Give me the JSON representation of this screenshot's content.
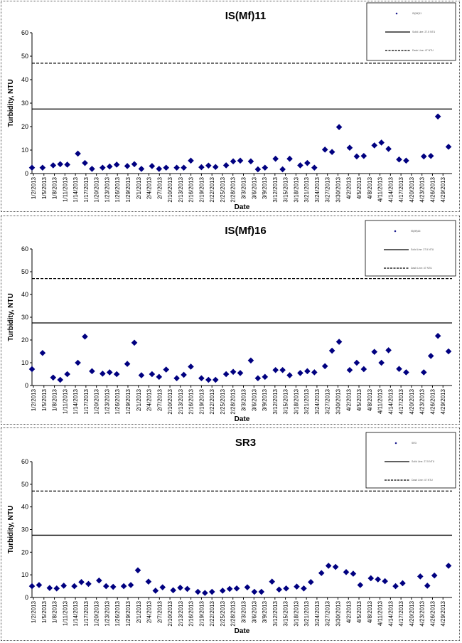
{
  "colors": {
    "marker": "#000080",
    "line": "#000000",
    "background": "#ffffff"
  },
  "chart_data": [
    {
      "type": "scatter",
      "title": "IS(Mf)11",
      "xlabel": "Date",
      "ylabel": "Turbidity, NTU",
      "ylim": [
        0,
        60
      ],
      "yticks": [
        0,
        10,
        20,
        30,
        40,
        50,
        60
      ],
      "xlim": [
        "2013-01-02",
        "2013-05-01"
      ],
      "xtick_labels": [
        "1/2/2013",
        "1/5/2013",
        "1/8/2013",
        "1/11/2013",
        "1/14/2013",
        "1/17/2013",
        "1/20/2013",
        "1/23/2013",
        "1/26/2013",
        "1/29/2013",
        "2/1/2013",
        "2/4/2013",
        "2/7/2013",
        "2/10/2013",
        "2/13/2013",
        "2/16/2013",
        "2/19/2013",
        "2/22/2013",
        "2/25/2013",
        "2/28/2013",
        "3/3/2013",
        "3/6/2013",
        "3/9/2013",
        "3/12/2013",
        "3/15/2013",
        "3/18/2013",
        "3/21/2013",
        "3/24/2013",
        "3/27/2013",
        "3/30/2013",
        "4/2/2013",
        "4/5/2013",
        "4/8/2013",
        "4/11/2013",
        "4/14/2013",
        "4/17/2013",
        "4/20/2013",
        "4/23/2013",
        "4/26/2013",
        "4/29/2013"
      ],
      "legend": {
        "position": "top-right",
        "entries": [
          "IS(Mf)11",
          "Solid Line: 27.5 NTU",
          "Dash Line: 47 NTU"
        ]
      },
      "reference_lines": [
        {
          "y": 27.5,
          "style": "solid"
        },
        {
          "y": 47,
          "style": "dashed"
        }
      ],
      "series": [
        {
          "points": [
            [
              "2013-01-02",
              2.5
            ],
            [
              "2013-01-05",
              2.5
            ],
            [
              "2013-01-08",
              3.5
            ],
            [
              "2013-01-10",
              4.0
            ],
            [
              "2013-01-12",
              3.8
            ],
            [
              "2013-01-15",
              8.5
            ],
            [
              "2013-01-17",
              4.5
            ],
            [
              "2013-01-19",
              2.0
            ],
            [
              "2013-01-22",
              2.5
            ],
            [
              "2013-01-24",
              3.0
            ],
            [
              "2013-01-26",
              3.8
            ],
            [
              "2013-01-29",
              3.2
            ],
            [
              "2013-01-31",
              4.0
            ],
            [
              "2013-02-02",
              2.0
            ],
            [
              "2013-02-05",
              3.2
            ],
            [
              "2013-02-07",
              2.0
            ],
            [
              "2013-02-09",
              2.5
            ],
            [
              "2013-02-12",
              2.5
            ],
            [
              "2013-02-14",
              2.5
            ],
            [
              "2013-02-16",
              5.5
            ],
            [
              "2013-02-19",
              2.7
            ],
            [
              "2013-02-21",
              3.4
            ],
            [
              "2013-02-23",
              2.8
            ],
            [
              "2013-02-26",
              3.5
            ],
            [
              "2013-02-28",
              5.2
            ],
            [
              "2013-03-02",
              5.5
            ],
            [
              "2013-03-05",
              5.2
            ],
            [
              "2013-03-07",
              1.8
            ],
            [
              "2013-03-09",
              2.5
            ],
            [
              "2013-03-12",
              6.3
            ],
            [
              "2013-03-14",
              1.8
            ],
            [
              "2013-03-16",
              6.3
            ],
            [
              "2013-03-19",
              3.5
            ],
            [
              "2013-03-21",
              4.5
            ],
            [
              "2013-03-23",
              2.5
            ],
            [
              "2013-03-26",
              10.2
            ],
            [
              "2013-03-28",
              9.2
            ],
            [
              "2013-03-30",
              19.8
            ],
            [
              "2013-04-02",
              11.0
            ],
            [
              "2013-04-04",
              7.3
            ],
            [
              "2013-04-06",
              7.5
            ],
            [
              "2013-04-09",
              12.0
            ],
            [
              "2013-04-11",
              13.2
            ],
            [
              "2013-04-13",
              10.5
            ],
            [
              "2013-04-16",
              6.0
            ],
            [
              "2013-04-18",
              5.5
            ],
            [
              "2013-04-23",
              7.3
            ],
            [
              "2013-04-25",
              7.5
            ],
            [
              "2013-04-27",
              24.3
            ],
            [
              "2013-04-30",
              11.4
            ]
          ]
        }
      ]
    },
    {
      "type": "scatter",
      "title": "IS(Mf)16",
      "xlabel": "Date",
      "ylabel": "Turbidity, NTU",
      "ylim": [
        0,
        60
      ],
      "yticks": [
        0,
        10,
        20,
        30,
        40,
        50,
        60
      ],
      "xlim": [
        "2013-01-02",
        "2013-05-01"
      ],
      "xtick_labels": [
        "1/2/2013",
        "1/5/2013",
        "1/8/2013",
        "1/11/2013",
        "1/14/2013",
        "1/17/2013",
        "1/20/2013",
        "1/23/2013",
        "1/26/2013",
        "1/29/2013",
        "2/1/2013",
        "2/4/2013",
        "2/7/2013",
        "2/10/2013",
        "2/13/2013",
        "2/16/2013",
        "2/19/2013",
        "2/22/2013",
        "2/25/2013",
        "2/28/2013",
        "3/3/2013",
        "3/6/2013",
        "3/9/2013",
        "3/12/2013",
        "3/15/2013",
        "3/18/2013",
        "3/21/2013",
        "3/24/2013",
        "3/27/2013",
        "3/30/2013",
        "4/2/2013",
        "4/5/2013",
        "4/8/2013",
        "4/11/2013",
        "4/14/2013",
        "4/17/2013",
        "4/20/2013",
        "4/23/2013",
        "4/26/2013",
        "4/29/2013"
      ],
      "legend": {
        "position": "top-right",
        "entries": [
          "IS(Mf)16",
          "Solid Line: 27.5 NTU",
          "Dash Line: 47 NTU"
        ]
      },
      "reference_lines": [
        {
          "y": 27.5,
          "style": "solid"
        },
        {
          "y": 47,
          "style": "dashed"
        }
      ],
      "series": [
        {
          "points": [
            [
              "2013-01-02",
              7.2
            ],
            [
              "2013-01-05",
              14.3
            ],
            [
              "2013-01-08",
              3.5
            ],
            [
              "2013-01-10",
              2.5
            ],
            [
              "2013-01-12",
              5.0
            ],
            [
              "2013-01-15",
              10.0
            ],
            [
              "2013-01-17",
              21.5
            ],
            [
              "2013-01-19",
              6.3
            ],
            [
              "2013-01-22",
              5.2
            ],
            [
              "2013-01-24",
              5.8
            ],
            [
              "2013-01-26",
              5.0
            ],
            [
              "2013-01-29",
              9.5
            ],
            [
              "2013-01-31",
              18.8
            ],
            [
              "2013-02-02",
              4.5
            ],
            [
              "2013-02-05",
              5.0
            ],
            [
              "2013-02-07",
              3.8
            ],
            [
              "2013-02-09",
              7.0
            ],
            [
              "2013-02-12",
              3.2
            ],
            [
              "2013-02-14",
              4.7
            ],
            [
              "2013-02-16",
              8.3
            ],
            [
              "2013-02-19",
              3.2
            ],
            [
              "2013-02-21",
              2.5
            ],
            [
              "2013-02-23",
              2.5
            ],
            [
              "2013-02-26",
              5.0
            ],
            [
              "2013-02-28",
              6.0
            ],
            [
              "2013-03-02",
              5.5
            ],
            [
              "2013-03-05",
              11.0
            ],
            [
              "2013-03-07",
              3.2
            ],
            [
              "2013-03-09",
              3.8
            ],
            [
              "2013-03-12",
              6.8
            ],
            [
              "2013-03-14",
              6.8
            ],
            [
              "2013-03-16",
              4.5
            ],
            [
              "2013-03-19",
              5.5
            ],
            [
              "2013-03-21",
              6.3
            ],
            [
              "2013-03-23",
              5.8
            ],
            [
              "2013-03-26",
              8.5
            ],
            [
              "2013-03-28",
              15.3
            ],
            [
              "2013-03-30",
              19.2
            ],
            [
              "2013-04-02",
              6.8
            ],
            [
              "2013-04-04",
              10.0
            ],
            [
              "2013-04-06",
              7.2
            ],
            [
              "2013-04-09",
              14.8
            ],
            [
              "2013-04-11",
              10.0
            ],
            [
              "2013-04-13",
              15.5
            ],
            [
              "2013-04-16",
              7.3
            ],
            [
              "2013-04-18",
              5.8
            ],
            [
              "2013-04-23",
              5.8
            ],
            [
              "2013-04-25",
              13.0
            ],
            [
              "2013-04-27",
              21.8
            ],
            [
              "2013-04-30",
              15.0
            ]
          ]
        }
      ]
    },
    {
      "type": "scatter",
      "title": "SR3",
      "xlabel": "Date",
      "ylabel": "Turbidity, NTU",
      "ylim": [
        0,
        60
      ],
      "yticks": [
        0,
        10,
        20,
        30,
        40,
        50,
        60
      ],
      "xlim": [
        "2013-01-02",
        "2013-05-01"
      ],
      "xtick_labels": [
        "1/2/2013",
        "1/5/2013",
        "1/8/2013",
        "1/11/2013",
        "1/14/2013",
        "1/17/2013",
        "1/20/2013",
        "1/23/2013",
        "1/26/2013",
        "1/29/2013",
        "2/1/2013",
        "2/4/2013",
        "2/7/2013",
        "2/10/2013",
        "2/13/2013",
        "2/16/2013",
        "2/19/2013",
        "2/22/2013",
        "2/25/2013",
        "2/28/2013",
        "3/3/2013",
        "3/6/2013",
        "3/9/2013",
        "3/12/2013",
        "3/15/2013",
        "3/18/2013",
        "3/21/2013",
        "3/24/2013",
        "3/27/2013",
        "3/30/2013",
        "4/2/2013",
        "4/5/2013",
        "4/8/2013",
        "4/11/2013",
        "4/14/2013",
        "4/17/2013",
        "4/20/2013",
        "4/23/2013",
        "4/26/2013",
        "4/29/2013"
      ],
      "legend": {
        "position": "top-right",
        "entries": [
          "SR3",
          "Solid Line: 27.5 NTU",
          "Dash Line: 47 NTU"
        ]
      },
      "reference_lines": [
        {
          "y": 27.5,
          "style": "solid"
        },
        {
          "y": 47,
          "style": "dashed"
        }
      ],
      "series": [
        {
          "points": [
            [
              "2013-01-02",
              5.0
            ],
            [
              "2013-01-04",
              5.5
            ],
            [
              "2013-01-07",
              4.2
            ],
            [
              "2013-01-09",
              4.0
            ],
            [
              "2013-01-11",
              5.2
            ],
            [
              "2013-01-14",
              5.0
            ],
            [
              "2013-01-16",
              6.8
            ],
            [
              "2013-01-18",
              6.0
            ],
            [
              "2013-01-21",
              7.5
            ],
            [
              "2013-01-23",
              5.0
            ],
            [
              "2013-01-25",
              4.7
            ],
            [
              "2013-01-28",
              5.0
            ],
            [
              "2013-01-30",
              5.5
            ],
            [
              "2013-02-01",
              12.0
            ],
            [
              "2013-02-04",
              7.0
            ],
            [
              "2013-02-06",
              3.0
            ],
            [
              "2013-02-08",
              4.5
            ],
            [
              "2013-02-11",
              3.2
            ],
            [
              "2013-02-13",
              4.3
            ],
            [
              "2013-02-15",
              3.8
            ],
            [
              "2013-02-18",
              2.5
            ],
            [
              "2013-02-20",
              2.0
            ],
            [
              "2013-02-22",
              2.5
            ],
            [
              "2013-02-25",
              3.0
            ],
            [
              "2013-02-27",
              3.8
            ],
            [
              "2013-03-01",
              4.0
            ],
            [
              "2013-03-04",
              4.5
            ],
            [
              "2013-03-06",
              2.5
            ],
            [
              "2013-03-08",
              2.5
            ],
            [
              "2013-03-11",
              7.0
            ],
            [
              "2013-03-13",
              3.5
            ],
            [
              "2013-03-15",
              4.0
            ],
            [
              "2013-03-18",
              4.8
            ],
            [
              "2013-03-20",
              4.0
            ],
            [
              "2013-03-22",
              6.8
            ],
            [
              "2013-03-25",
              10.8
            ],
            [
              "2013-03-27",
              14.0
            ],
            [
              "2013-03-29",
              13.5
            ],
            [
              "2013-04-01",
              11.2
            ],
            [
              "2013-04-03",
              10.5
            ],
            [
              "2013-04-05",
              5.5
            ],
            [
              "2013-04-08",
              8.5
            ],
            [
              "2013-04-10",
              8.0
            ],
            [
              "2013-04-12",
              7.2
            ],
            [
              "2013-04-15",
              5.0
            ],
            [
              "2013-04-17",
              6.3
            ],
            [
              "2013-04-22",
              9.3
            ],
            [
              "2013-04-24",
              5.2
            ],
            [
              "2013-04-26",
              9.7
            ],
            [
              "2013-04-30",
              14.0
            ]
          ]
        }
      ]
    }
  ]
}
